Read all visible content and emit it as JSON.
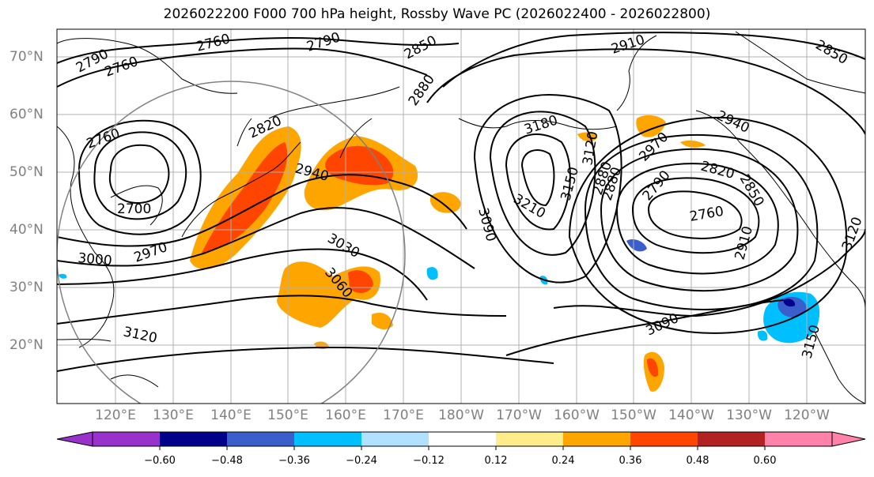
{
  "title": "2026022200 F000 700 hPa height, Rossby Wave PC (2026022400 - 2026022800)",
  "latitude_labels": [
    "70°N",
    "60°N",
    "50°N",
    "40°N",
    "30°N",
    "20°N"
  ],
  "longitude_labels": [
    "120°E",
    "130°E",
    "140°E",
    "150°E",
    "160°E",
    "170°E",
    "180°W",
    "170°W",
    "160°W",
    "150°W",
    "140°W",
    "130°W",
    "120°W"
  ],
  "contour_labels": [
    "2790",
    "2760",
    "2760",
    "2790",
    "2850",
    "2910",
    "2880",
    "2850",
    "2760",
    "2820",
    "2940",
    "3180",
    "3120",
    "2940",
    "2970",
    "2820",
    "2850",
    "2700",
    "3210",
    "3150",
    "2880",
    "2790",
    "2760",
    "3090",
    "3030",
    "2910",
    "3000",
    "2970",
    "3060",
    "3120",
    "3090",
    "3150",
    "2880",
    "3120"
  ],
  "colorbar": {
    "ticks": [
      "−0.60",
      "−0.48",
      "−0.36",
      "−0.24",
      "−0.12",
      "0.12",
      "0.24",
      "0.36",
      "0.48",
      "0.60"
    ],
    "colors": [
      "#9932cc",
      "#00008b",
      "#3a5fcd",
      "#00bfff",
      "#b0e2ff",
      "#ffffff",
      "#ffec8b",
      "#ffa500",
      "#ff4500",
      "#b22222",
      "#ff82ab"
    ]
  }
}
